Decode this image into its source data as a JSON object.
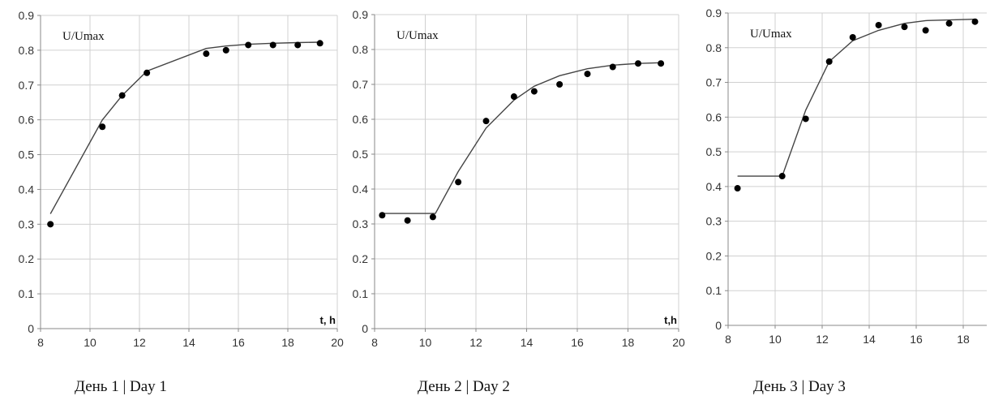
{
  "chart_data": [
    {
      "type": "scatter",
      "caption": "День 1 | Day 1",
      "ylabel": "U/Umax",
      "xlabel": "t, h",
      "xlim": [
        8,
        20
      ],
      "ylim": [
        0,
        0.9
      ],
      "xticks": [
        "8",
        "10",
        "12",
        "14",
        "16",
        "18",
        "20"
      ],
      "yticks": [
        "0",
        "0.1",
        "0.2",
        "0.3",
        "0.4",
        "0.5",
        "0.6",
        "0.7",
        "0.8",
        "0.9"
      ],
      "grid": true,
      "series": [
        {
          "kind": "points",
          "x": [
            8.4,
            10.5,
            11.3,
            12.3,
            14.7,
            15.5,
            16.4,
            17.4,
            18.4,
            19.3
          ],
          "y": [
            0.3,
            0.58,
            0.67,
            0.735,
            0.79,
            0.8,
            0.815,
            0.815,
            0.815,
            0.82
          ]
        },
        {
          "kind": "line",
          "x": [
            8.4,
            10.5,
            11.3,
            12.3,
            14.7,
            15.5,
            16.4,
            17.4,
            18.4,
            19.3
          ],
          "y": [
            0.33,
            0.6,
            0.67,
            0.74,
            0.805,
            0.812,
            0.817,
            0.82,
            0.822,
            0.823
          ]
        }
      ]
    },
    {
      "type": "scatter",
      "caption": "День 2 | Day 2",
      "ylabel": "U/Umax",
      "xlabel": "t,h",
      "xlim": [
        8,
        20
      ],
      "ylim": [
        0,
        0.9
      ],
      "xticks": [
        "8",
        "10",
        "12",
        "14",
        "16",
        "18",
        "20"
      ],
      "yticks": [
        "0",
        "0.1",
        "0.2",
        "0.3",
        "0.4",
        "0.5",
        "0.6",
        "0.7",
        "0.8",
        "0.9"
      ],
      "grid": true,
      "series": [
        {
          "kind": "points",
          "x": [
            8.3,
            9.3,
            10.3,
            11.3,
            12.4,
            13.5,
            14.3,
            15.3,
            16.4,
            17.4,
            18.4,
            19.3
          ],
          "y": [
            0.325,
            0.31,
            0.32,
            0.42,
            0.595,
            0.665,
            0.68,
            0.7,
            0.73,
            0.75,
            0.76,
            0.76
          ]
        },
        {
          "kind": "line",
          "x": [
            8.3,
            9.3,
            10.4,
            11.3,
            12.4,
            13.5,
            14.3,
            15.3,
            16.4,
            17.4,
            18.4,
            19.3
          ],
          "y": [
            0.33,
            0.33,
            0.33,
            0.45,
            0.575,
            0.655,
            0.695,
            0.725,
            0.745,
            0.755,
            0.76,
            0.762
          ]
        }
      ]
    },
    {
      "type": "scatter",
      "caption": "День 3 | Day 3",
      "ylabel": "U/Umax",
      "xlabel": "",
      "xlim": [
        8,
        19
      ],
      "ylim": [
        0,
        0.9
      ],
      "xticks": [
        "8",
        "10",
        "12",
        "14",
        "16",
        "18"
      ],
      "yticks": [
        "0",
        "0.1",
        "0.2",
        "0.3",
        "0.4",
        "0.5",
        "0.6",
        "0.7",
        "0.8",
        "0.9"
      ],
      "grid": true,
      "series": [
        {
          "kind": "points",
          "x": [
            8.4,
            10.3,
            11.3,
            12.3,
            13.3,
            14.4,
            15.5,
            16.4,
            17.4,
            18.5
          ],
          "y": [
            0.395,
            0.43,
            0.595,
            0.76,
            0.83,
            0.865,
            0.86,
            0.85,
            0.87,
            0.875
          ]
        },
        {
          "kind": "line",
          "x": [
            8.4,
            10.3,
            11.3,
            12.3,
            13.3,
            14.4,
            15.5,
            16.4,
            17.4,
            18.5
          ],
          "y": [
            0.43,
            0.43,
            0.62,
            0.76,
            0.82,
            0.85,
            0.87,
            0.878,
            0.88,
            0.882
          ]
        }
      ]
    }
  ]
}
